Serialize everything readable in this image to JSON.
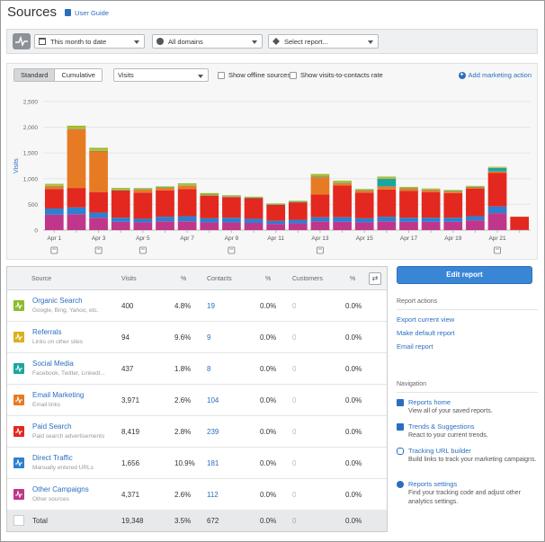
{
  "header": {
    "title": "Sources",
    "guide_label": "User Guide"
  },
  "filters": {
    "date_range": "This month to date",
    "domains": "All domains",
    "report": "Select report..."
  },
  "chart_controls": {
    "tabs": [
      "Standard",
      "Cumulative"
    ],
    "active_tab": "Standard",
    "metric": "Visits",
    "offline_label": "Show offline sources",
    "rate_label": "Show visits-to-contacts rate",
    "add_marketing_label": "Add marketing action"
  },
  "chart_data": {
    "type": "bar",
    "stacked": true,
    "ylabel": "Visits",
    "ylim": [
      0,
      2500
    ],
    "yticks": [
      "0",
      "500",
      "1,000",
      "1,500",
      "2,000",
      "2,500"
    ],
    "categories": [
      "Apr 1",
      "Apr 2",
      "Apr 3",
      "Apr 4",
      "Apr 5",
      "Apr 6",
      "Apr 7",
      "Apr 8",
      "Apr 9",
      "Apr 10",
      "Apr 11",
      "Apr 12",
      "Apr 13",
      "Apr 14",
      "Apr 15",
      "Apr 16",
      "Apr 17",
      "Apr 18",
      "Apr 19",
      "Apr 20",
      "Apr 21",
      "Apr 22"
    ],
    "xtick_labels": [
      "Apr 1",
      "",
      "Apr 3",
      "",
      "Apr 5",
      "",
      "Apr 7",
      "",
      "Apr 9",
      "",
      "Apr 11",
      "",
      "Apr 13",
      "",
      "Apr 15",
      "",
      "Apr 17",
      "",
      "Apr 19",
      "",
      "Apr 21",
      ""
    ],
    "event_markers": [
      "Apr 1",
      "Apr 3",
      "Apr 5",
      "Apr 9",
      "Apr 13",
      "Apr 21"
    ],
    "series": [
      {
        "name": "Other Campaigns",
        "color": "#c0368a",
        "values": [
          300,
          310,
          240,
          160,
          150,
          170,
          170,
          150,
          150,
          140,
          120,
          130,
          170,
          160,
          150,
          170,
          160,
          160,
          160,
          190,
          330,
          10
        ]
      },
      {
        "name": "Direct Traffic",
        "color": "#2c7fd1",
        "values": [
          120,
          130,
          100,
          80,
          70,
          90,
          100,
          80,
          90,
          80,
          60,
          70,
          80,
          90,
          80,
          90,
          80,
          80,
          80,
          80,
          130,
          0
        ]
      },
      {
        "name": "Paid Search",
        "color": "#e3281f",
        "values": [
          380,
          380,
          400,
          530,
          510,
          510,
          530,
          440,
          400,
          400,
          310,
          340,
          440,
          620,
          500,
          530,
          520,
          500,
          480,
          540,
          650,
          250
        ]
      },
      {
        "name": "Email Marketing",
        "color": "#e77b24",
        "values": [
          50,
          1140,
          790,
          0,
          60,
          50,
          60,
          10,
          10,
          0,
          0,
          0,
          340,
          40,
          40,
          60,
          50,
          40,
          30,
          20,
          30,
          0
        ]
      },
      {
        "name": "Social Media",
        "color": "#1aa6a0",
        "values": [
          10,
          10,
          10,
          10,
          10,
          10,
          10,
          10,
          10,
          10,
          10,
          10,
          10,
          10,
          10,
          150,
          10,
          10,
          10,
          10,
          70,
          0
        ]
      },
      {
        "name": "Referrals",
        "color": "#d8b21a",
        "values": [
          20,
          30,
          30,
          20,
          10,
          10,
          20,
          10,
          10,
          10,
          10,
          10,
          20,
          20,
          10,
          20,
          10,
          10,
          10,
          10,
          10,
          0
        ]
      },
      {
        "name": "Organic Search",
        "color": "#8cbd2c",
        "values": [
          20,
          30,
          30,
          20,
          10,
          10,
          20,
          20,
          10,
          10,
          10,
          10,
          30,
          20,
          10,
          20,
          10,
          10,
          10,
          10,
          10,
          0
        ]
      }
    ]
  },
  "table": {
    "headers": {
      "source": "Source",
      "visits": "Visits",
      "pct1": "%",
      "contacts": "Contacts",
      "pct2": "%",
      "customers": "Customers",
      "pct3": "%"
    },
    "rows": [
      {
        "name": "Organic Search",
        "sub": "Google, Bing, Yahoo, etc.",
        "visits": "400",
        "visits_pct": "4.8%",
        "contacts": "19",
        "contacts_pct": "0.0%",
        "customers": "0",
        "customers_pct": "0.0%",
        "color": "#8cbd2c"
      },
      {
        "name": "Referrals",
        "sub": "Links on other sites",
        "visits": "94",
        "visits_pct": "9.6%",
        "contacts": "9",
        "contacts_pct": "0.0%",
        "customers": "0",
        "customers_pct": "0.0%",
        "color": "#d8b21a"
      },
      {
        "name": "Social Media",
        "sub": "Facebook, Twitter, LinkedI...",
        "visits": "437",
        "visits_pct": "1.8%",
        "contacts": "8",
        "contacts_pct": "0.0%",
        "customers": "0",
        "customers_pct": "0.0%",
        "color": "#1aa6a0"
      },
      {
        "name": "Email Marketing",
        "sub": "Email links",
        "visits": "3,971",
        "visits_pct": "2.6%",
        "contacts": "104",
        "contacts_pct": "0.0%",
        "customers": "0",
        "customers_pct": "0.0%",
        "color": "#e77b24"
      },
      {
        "name": "Paid Search",
        "sub": "Paid search advertisements",
        "visits": "8,419",
        "visits_pct": "2.8%",
        "contacts": "239",
        "contacts_pct": "0.0%",
        "customers": "0",
        "customers_pct": "0.0%",
        "color": "#e3281f"
      },
      {
        "name": "Direct Traffic",
        "sub": "Manually entered URLs",
        "visits": "1,656",
        "visits_pct": "10.9%",
        "contacts": "181",
        "contacts_pct": "0.0%",
        "customers": "0",
        "customers_pct": "0.0%",
        "color": "#2c7fd1"
      },
      {
        "name": "Other Campaigns",
        "sub": "Other sources",
        "visits": "4,371",
        "visits_pct": "2.6%",
        "contacts": "112",
        "contacts_pct": "0.0%",
        "customers": "0",
        "customers_pct": "0.0%",
        "color": "#c0368a"
      }
    ],
    "total": {
      "label": "Total",
      "visits": "19,348",
      "visits_pct": "3.5%",
      "contacts": "672",
      "contacts_pct": "0.0%",
      "customers": "0",
      "customers_pct": "0.0%"
    }
  },
  "sidebar": {
    "edit_button": "Edit report",
    "report_actions_heading": "Report actions",
    "actions": [
      "Export current view",
      "Make default report",
      "Email report"
    ],
    "navigation_heading": "Navigation",
    "nav": [
      {
        "label": "Reports home",
        "desc": "View all of your saved reports.",
        "icon": "home-icon"
      },
      {
        "label": "Trends & Suggestions",
        "desc": "React to your current trends.",
        "icon": "trends-icon"
      },
      {
        "label": "Tracking URL builder",
        "desc": "Build links to track your marketing campaigns.",
        "icon": "link-icon"
      },
      {
        "label": "Reports settings",
        "desc": "Find your tracking code and adjust other analytics settings.",
        "icon": "gear-icon"
      }
    ]
  }
}
